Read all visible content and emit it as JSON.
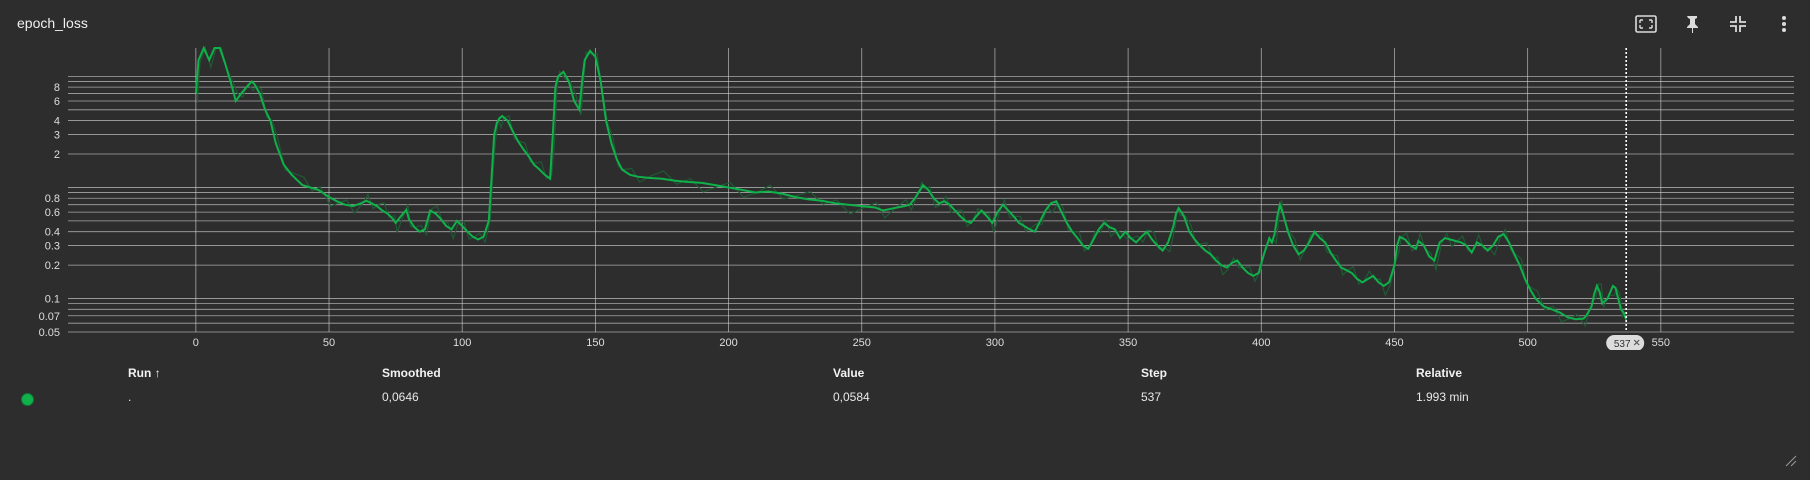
{
  "card": {
    "title": "epoch_loss"
  },
  "toolbar": {
    "buttons": [
      {
        "name": "fit-domain-icon"
      },
      {
        "name": "pin-icon"
      },
      {
        "name": "collapse-icon"
      },
      {
        "name": "more-vert-icon"
      }
    ]
  },
  "colors": {
    "accent": "#10b04a",
    "raw": "#1f5a35",
    "grid": "#cfcfcf",
    "background": "#2d2d2d"
  },
  "chart_data": {
    "type": "line",
    "title": "epoch_loss",
    "y_scale": "log",
    "ylim": [
      0.05,
      18
    ],
    "xlim": [
      -48,
      600
    ],
    "x_ticks": [
      0,
      50,
      100,
      150,
      200,
      250,
      300,
      350,
      400,
      450,
      500,
      550
    ],
    "x_tick_labels": [
      "0",
      "50",
      "100",
      "150",
      "200",
      "250",
      "300",
      "350",
      "400",
      "450",
      "500",
      "550"
    ],
    "y_tick_labels": [
      {
        "v": 8,
        "label": "8"
      },
      {
        "v": 6,
        "label": "6"
      },
      {
        "v": 4,
        "label": "4"
      },
      {
        "v": 3,
        "label": "3"
      },
      {
        "v": 2,
        "label": "2"
      },
      {
        "v": 0.8,
        "label": "0.8"
      },
      {
        "v": 0.6,
        "label": "0.6"
      },
      {
        "v": 0.4,
        "label": "0.4"
      },
      {
        "v": 0.3,
        "label": "0.3"
      },
      {
        "v": 0.2,
        "label": "0.2"
      },
      {
        "v": 0.1,
        "label": "0.1"
      },
      {
        "v": 0.07,
        "label": "0.07"
      },
      {
        "v": 0.05,
        "label": "0.05"
      }
    ],
    "y_gridlines": [
      10,
      9,
      8,
      7,
      6,
      5,
      4,
      3,
      2,
      1,
      0.9,
      0.8,
      0.7,
      0.6,
      0.5,
      0.4,
      0.3,
      0.2,
      0.1,
      0.09,
      0.08,
      0.07,
      0.06,
      0.05
    ],
    "cursor_step": 537,
    "cursor_label": "537",
    "series": [
      {
        "name": ".",
        "smoothed": true,
        "points": [
          [
            0,
            7
          ],
          [
            1,
            14
          ],
          [
            3,
            20
          ],
          [
            5,
            14
          ],
          [
            7,
            18
          ],
          [
            9,
            20
          ],
          [
            11,
            13
          ],
          [
            13,
            9
          ],
          [
            15,
            6
          ],
          [
            17,
            7
          ],
          [
            19,
            8
          ],
          [
            21,
            9
          ],
          [
            22,
            8.5
          ],
          [
            24,
            7
          ],
          [
            26,
            5
          ],
          [
            28,
            4
          ],
          [
            30,
            2.5
          ],
          [
            33,
            1.6
          ],
          [
            36,
            1.3
          ],
          [
            40,
            1.05
          ],
          [
            43,
            1.0
          ],
          [
            46,
            0.95
          ],
          [
            50,
            0.82
          ],
          [
            53,
            0.75
          ],
          [
            56,
            0.7
          ],
          [
            59,
            0.68
          ],
          [
            62,
            0.72
          ],
          [
            64,
            0.76
          ],
          [
            66,
            0.72
          ],
          [
            68,
            0.68
          ],
          [
            70,
            0.62
          ],
          [
            72,
            0.58
          ],
          [
            74,
            0.52
          ],
          [
            75,
            0.48
          ],
          [
            77,
            0.55
          ],
          [
            79,
            0.63
          ],
          [
            80,
            0.52
          ],
          [
            82,
            0.44
          ],
          [
            84,
            0.4
          ],
          [
            86,
            0.42
          ],
          [
            88,
            0.62
          ],
          [
            90,
            0.58
          ],
          [
            92,
            0.52
          ],
          [
            94,
            0.45
          ],
          [
            96,
            0.42
          ],
          [
            98,
            0.5
          ],
          [
            100,
            0.45
          ],
          [
            102,
            0.4
          ],
          [
            104,
            0.36
          ],
          [
            106,
            0.34
          ],
          [
            108,
            0.36
          ],
          [
            110,
            0.5
          ],
          [
            111,
            1.2
          ],
          [
            112,
            3.0
          ],
          [
            113,
            3.8
          ],
          [
            114,
            4.2
          ],
          [
            115,
            4.4
          ],
          [
            117,
            4.0
          ],
          [
            119,
            3.2
          ],
          [
            121,
            2.6
          ],
          [
            123,
            2.2
          ],
          [
            125,
            1.9
          ],
          [
            127,
            1.6
          ],
          [
            129,
            1.45
          ],
          [
            131,
            1.3
          ],
          [
            133,
            1.2
          ],
          [
            134,
            3.0
          ],
          [
            135,
            8.0
          ],
          [
            136,
            10
          ],
          [
            138,
            11
          ],
          [
            140,
            9
          ],
          [
            142,
            6
          ],
          [
            144,
            5
          ],
          [
            145,
            9
          ],
          [
            146,
            14
          ],
          [
            148,
            17
          ],
          [
            150,
            15
          ],
          [
            152,
            9
          ],
          [
            154,
            4.0
          ],
          [
            156,
            2.5
          ],
          [
            158,
            1.8
          ],
          [
            160,
            1.45
          ],
          [
            163,
            1.3
          ],
          [
            166,
            1.25
          ],
          [
            170,
            1.22
          ],
          [
            175,
            1.2
          ],
          [
            180,
            1.15
          ],
          [
            185,
            1.12
          ],
          [
            190,
            1.1
          ],
          [
            195,
            1.05
          ],
          [
            200,
            1.0
          ],
          [
            205,
            0.95
          ],
          [
            210,
            0.9
          ],
          [
            215,
            0.92
          ],
          [
            220,
            0.88
          ],
          [
            225,
            0.82
          ],
          [
            230,
            0.78
          ],
          [
            235,
            0.76
          ],
          [
            240,
            0.72
          ],
          [
            245,
            0.7
          ],
          [
            250,
            0.68
          ],
          [
            255,
            0.66
          ],
          [
            258,
            0.62
          ],
          [
            262,
            0.65
          ],
          [
            266,
            0.68
          ],
          [
            268,
            0.7
          ],
          [
            270,
            0.8
          ],
          [
            272,
            0.95
          ],
          [
            273,
            1.05
          ],
          [
            275,
            0.95
          ],
          [
            277,
            0.8
          ],
          [
            279,
            0.72
          ],
          [
            281,
            0.75
          ],
          [
            283,
            0.7
          ],
          [
            285,
            0.62
          ],
          [
            287,
            0.55
          ],
          [
            289,
            0.5
          ],
          [
            291,
            0.48
          ],
          [
            293,
            0.55
          ],
          [
            295,
            0.62
          ],
          [
            297,
            0.55
          ],
          [
            299,
            0.48
          ],
          [
            301,
            0.6
          ],
          [
            303,
            0.7
          ],
          [
            305,
            0.62
          ],
          [
            307,
            0.55
          ],
          [
            309,
            0.48
          ],
          [
            311,
            0.45
          ],
          [
            313,
            0.42
          ],
          [
            315,
            0.4
          ],
          [
            317,
            0.5
          ],
          [
            319,
            0.62
          ],
          [
            321,
            0.72
          ],
          [
            323,
            0.75
          ],
          [
            325,
            0.6
          ],
          [
            327,
            0.48
          ],
          [
            329,
            0.4
          ],
          [
            331,
            0.35
          ],
          [
            333,
            0.3
          ],
          [
            335,
            0.28
          ],
          [
            337,
            0.34
          ],
          [
            339,
            0.42
          ],
          [
            341,
            0.48
          ],
          [
            343,
            0.44
          ],
          [
            345,
            0.42
          ],
          [
            347,
            0.35
          ],
          [
            349,
            0.4
          ],
          [
            351,
            0.35
          ],
          [
            353,
            0.32
          ],
          [
            355,
            0.36
          ],
          [
            357,
            0.4
          ],
          [
            359,
            0.34
          ],
          [
            361,
            0.3
          ],
          [
            363,
            0.27
          ],
          [
            365,
            0.32
          ],
          [
            367,
            0.45
          ],
          [
            368,
            0.58
          ],
          [
            369,
            0.65
          ],
          [
            371,
            0.55
          ],
          [
            373,
            0.4
          ],
          [
            375,
            0.34
          ],
          [
            377,
            0.3
          ],
          [
            379,
            0.27
          ],
          [
            381,
            0.25
          ],
          [
            383,
            0.22
          ],
          [
            385,
            0.2
          ],
          [
            387,
            0.19
          ],
          [
            389,
            0.21
          ],
          [
            391,
            0.22
          ],
          [
            393,
            0.19
          ],
          [
            395,
            0.17
          ],
          [
            397,
            0.16
          ],
          [
            399,
            0.17
          ],
          [
            401,
            0.25
          ],
          [
            403,
            0.35
          ],
          [
            404,
            0.32
          ],
          [
            405,
            0.38
          ],
          [
            406,
            0.55
          ],
          [
            407,
            0.7
          ],
          [
            408,
            0.6
          ],
          [
            410,
            0.4
          ],
          [
            412,
            0.3
          ],
          [
            414,
            0.25
          ],
          [
            416,
            0.27
          ],
          [
            418,
            0.32
          ],
          [
            420,
            0.4
          ],
          [
            422,
            0.35
          ],
          [
            424,
            0.32
          ],
          [
            426,
            0.26
          ],
          [
            428,
            0.22
          ],
          [
            430,
            0.19
          ],
          [
            432,
            0.18
          ],
          [
            434,
            0.17
          ],
          [
            436,
            0.15
          ],
          [
            438,
            0.14
          ],
          [
            440,
            0.15
          ],
          [
            442,
            0.16
          ],
          [
            444,
            0.14
          ],
          [
            446,
            0.13
          ],
          [
            448,
            0.14
          ],
          [
            450,
            0.2
          ],
          [
            451,
            0.3
          ],
          [
            452,
            0.36
          ],
          [
            454,
            0.34
          ],
          [
            456,
            0.3
          ],
          [
            458,
            0.28
          ],
          [
            459,
            0.33
          ],
          [
            461,
            0.3
          ],
          [
            463,
            0.24
          ],
          [
            465,
            0.22
          ],
          [
            467,
            0.32
          ],
          [
            469,
            0.35
          ],
          [
            471,
            0.34
          ],
          [
            473,
            0.33
          ],
          [
            475,
            0.32
          ],
          [
            477,
            0.3
          ],
          [
            479,
            0.26
          ],
          [
            481,
            0.32
          ],
          [
            483,
            0.3
          ],
          [
            485,
            0.27
          ],
          [
            487,
            0.3
          ],
          [
            489,
            0.36
          ],
          [
            491,
            0.38
          ],
          [
            493,
            0.32
          ],
          [
            495,
            0.25
          ],
          [
            497,
            0.2
          ],
          [
            499,
            0.15
          ],
          [
            501,
            0.12
          ],
          [
            503,
            0.1
          ],
          [
            506,
            0.085
          ],
          [
            509,
            0.08
          ],
          [
            512,
            0.075
          ],
          [
            515,
            0.068
          ],
          [
            518,
            0.065
          ],
          [
            521,
            0.066
          ],
          [
            522,
            0.07
          ],
          [
            524,
            0.085
          ],
          [
            525,
            0.11
          ],
          [
            526,
            0.13
          ],
          [
            527,
            0.115
          ],
          [
            528,
            0.09
          ],
          [
            530,
            0.1
          ],
          [
            532,
            0.13
          ],
          [
            533,
            0.125
          ],
          [
            534,
            0.1
          ],
          [
            535,
            0.08
          ],
          [
            536,
            0.075
          ],
          [
            537,
            0.0646
          ]
        ]
      }
    ]
  },
  "table": {
    "headers": {
      "run": "Run ↑",
      "smoothed": "Smoothed",
      "value": "Value",
      "step": "Step",
      "relative": "Relative"
    },
    "rows": [
      {
        "run": ".",
        "smoothed": "0,0646",
        "value": "0,0584",
        "step": "537",
        "relative": "1.993 min"
      }
    ]
  }
}
